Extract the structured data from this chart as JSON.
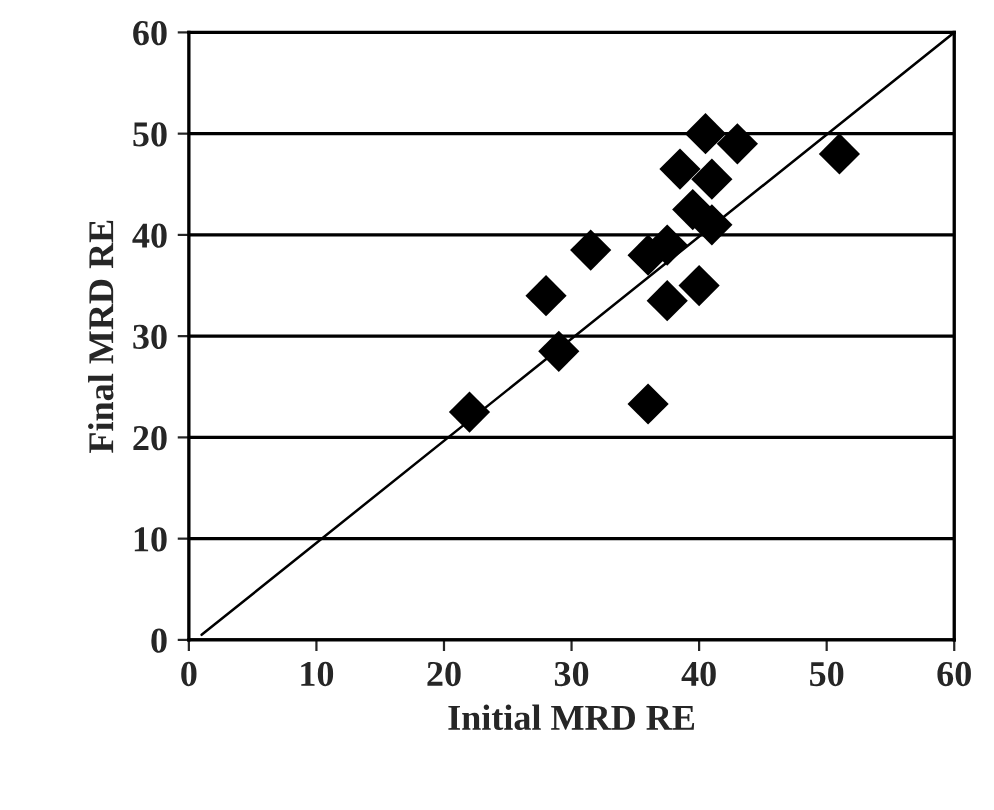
{
  "chart_data": {
    "type": "scatter",
    "xlabel": "Initial MRD RE",
    "ylabel": "Final MRD RE",
    "xlim": [
      0,
      60
    ],
    "ylim": [
      0,
      60
    ],
    "xticks": [
      0,
      10,
      20,
      30,
      40,
      50,
      60
    ],
    "yticks": [
      0,
      10,
      20,
      30,
      40,
      50,
      60
    ],
    "grid": "y",
    "series": [
      {
        "marker": "diamond",
        "color": "#000000",
        "x": [
          22,
          28,
          29,
          31.5,
          36,
          36,
          37.5,
          37.5,
          38.5,
          39.5,
          40,
          40.5,
          41,
          41,
          43,
          51
        ],
        "values": [
          22.5,
          34,
          28.5,
          38.5,
          38,
          23.3,
          39,
          33.5,
          46.5,
          42.5,
          35,
          50,
          45.5,
          41,
          49,
          48
        ]
      },
      {
        "type": "line",
        "marker": "none",
        "color": "#000000",
        "x": [
          1,
          60
        ],
        "values": [
          0.5,
          60
        ]
      }
    ]
  }
}
